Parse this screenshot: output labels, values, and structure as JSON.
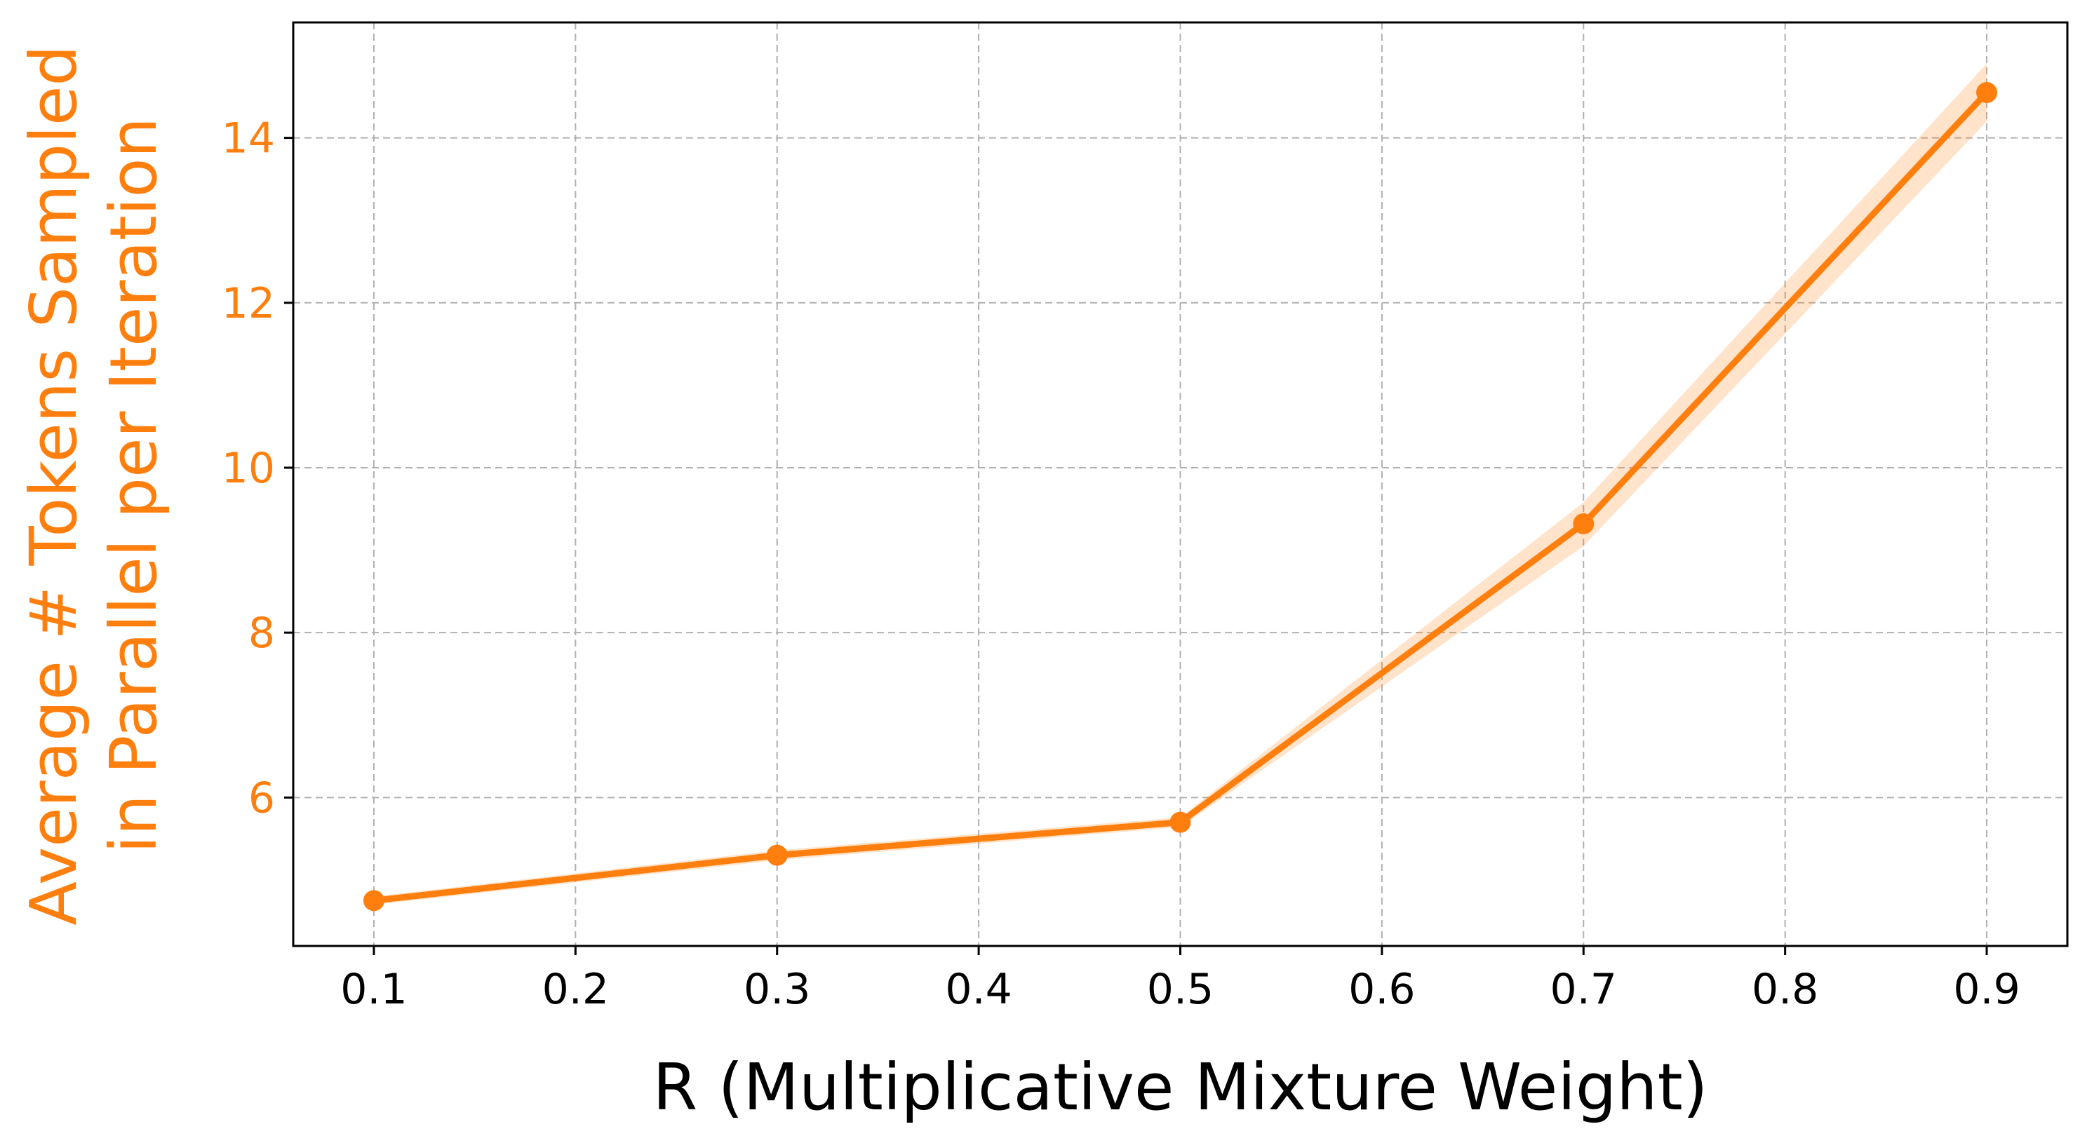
{
  "chart_data": {
    "type": "line",
    "title": "",
    "xlabel": "R (Multiplicative Mixture Weight)",
    "ylabel_lines": [
      "Average # Tokens Sampled",
      "in Parallel per Iteration"
    ],
    "x_ticks": [
      "0.1",
      "0.2",
      "0.3",
      "0.4",
      "0.5",
      "0.6",
      "0.7",
      "0.8",
      "0.9"
    ],
    "y_ticks": [
      "6",
      "8",
      "10",
      "12",
      "14"
    ],
    "xlim": [
      0.06,
      0.94
    ],
    "ylim": [
      4.2,
      15.4
    ],
    "grid": true,
    "series": [
      {
        "x": [
          0.1,
          0.3,
          0.5,
          0.7,
          0.9
        ],
        "y": [
          4.75,
          5.3,
          5.7,
          9.32,
          14.55
        ],
        "y_lower": [
          4.7,
          5.24,
          5.64,
          9.05,
          14.2
        ],
        "y_upper": [
          4.8,
          5.36,
          5.76,
          9.58,
          14.9
        ],
        "color": "#ff7f0e"
      }
    ],
    "ylabel_color": "#ff7f0e"
  }
}
